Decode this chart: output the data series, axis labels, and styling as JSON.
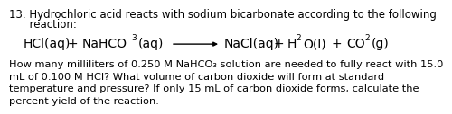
{
  "background_color": "#ffffff",
  "text_color": "#000000",
  "font_size_title": 8.5,
  "font_size_eq": 10.0,
  "font_size_para": 8.2,
  "line1": "13. Hydrochloric acid reacts with sodium bicarbonate according to the following",
  "line2": "      reaction:",
  "para": "How many milliliters of 0.250 M NaHCO₃ solution are needed to fully react with 15.0\nmL of 0.100 M HCl? What volume of carbon dioxide will form at standard\ntemperature and pressure? If only 15 mL of carbon dioxide forms, calculate the\npercent yield of the reaction."
}
